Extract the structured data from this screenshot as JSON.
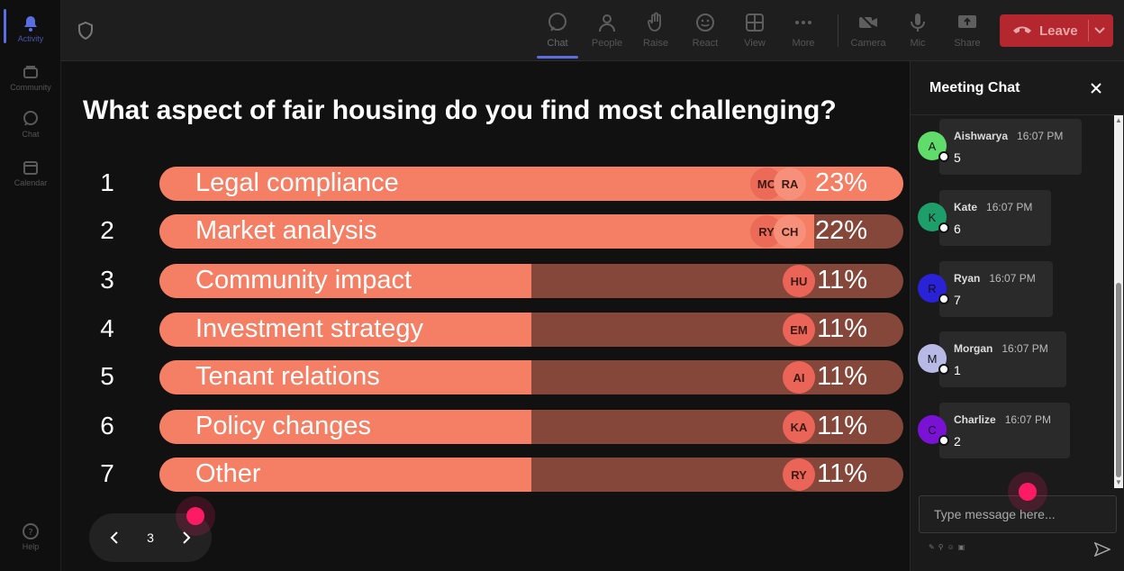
{
  "rail": {
    "items": [
      {
        "label": "Activity",
        "icon": "bell-icon"
      },
      {
        "label": "Community",
        "icon": "community-icon"
      },
      {
        "label": "Chat",
        "icon": "chat-icon"
      },
      {
        "label": "Calendar",
        "icon": "calendar-icon"
      },
      {
        "label": "Help",
        "icon": "help-icon"
      }
    ]
  },
  "toolbar": {
    "buttons": [
      {
        "label": "Chat",
        "icon": "chat-icon"
      },
      {
        "label": "People",
        "icon": "people-icon"
      },
      {
        "label": "Raise",
        "icon": "raise-hand-icon"
      },
      {
        "label": "React",
        "icon": "react-icon"
      },
      {
        "label": "View",
        "icon": "view-icon"
      },
      {
        "label": "More",
        "icon": "more-icon"
      },
      {
        "label": "Camera",
        "icon": "camera-off-icon"
      },
      {
        "label": "Mic",
        "icon": "mic-icon"
      },
      {
        "label": "Share",
        "icon": "share-icon"
      }
    ],
    "leave_label": "Leave"
  },
  "poll": {
    "question": "What aspect of fair housing do you find most challenging?",
    "options": [
      {
        "num": "1",
        "label": "Legal compliance",
        "pct": "23%",
        "fill": 1.0,
        "avatars": [
          "MC",
          "RA"
        ]
      },
      {
        "num": "2",
        "label": "Market analysis",
        "pct": "22%",
        "fill": 0.88,
        "avatars": [
          "RY",
          "CH"
        ]
      },
      {
        "num": "3",
        "label": "Community impact",
        "pct": "11%",
        "fill": 0.5,
        "avatars": [
          "HU"
        ]
      },
      {
        "num": "4",
        "label": "Investment strategy",
        "pct": "11%",
        "fill": 0.5,
        "avatars": [
          "EM"
        ]
      },
      {
        "num": "5",
        "label": "Tenant relations",
        "pct": "11%",
        "fill": 0.5,
        "avatars": [
          "AI"
        ]
      },
      {
        "num": "6",
        "label": "Policy changes",
        "pct": "11%",
        "fill": 0.5,
        "avatars": [
          "KA"
        ]
      },
      {
        "num": "7",
        "label": "Other",
        "pct": "11%",
        "fill": 0.5,
        "avatars": [
          "RY"
        ]
      }
    ],
    "page": "3"
  },
  "chat": {
    "title": "Meeting Chat",
    "messages": [
      {
        "initial": "A",
        "name": "Aishwarya",
        "time": "16:07 PM",
        "text": "5",
        "color": "#5fdc6a"
      },
      {
        "initial": "K",
        "name": "Kate",
        "time": "16:07 PM",
        "text": "6",
        "color": "#1e9e6a"
      },
      {
        "initial": "R",
        "name": "Ryan",
        "time": "16:07 PM",
        "text": "7",
        "color": "#2a22d6"
      },
      {
        "initial": "M",
        "name": "Morgan",
        "time": "16:07 PM",
        "text": "1",
        "color": "#b9b9e6"
      },
      {
        "initial": "C",
        "name": "Charlize",
        "time": "16:07 PM",
        "text": "2",
        "color": "#7a12d6"
      }
    ],
    "input_placeholder": "Type message here..."
  }
}
